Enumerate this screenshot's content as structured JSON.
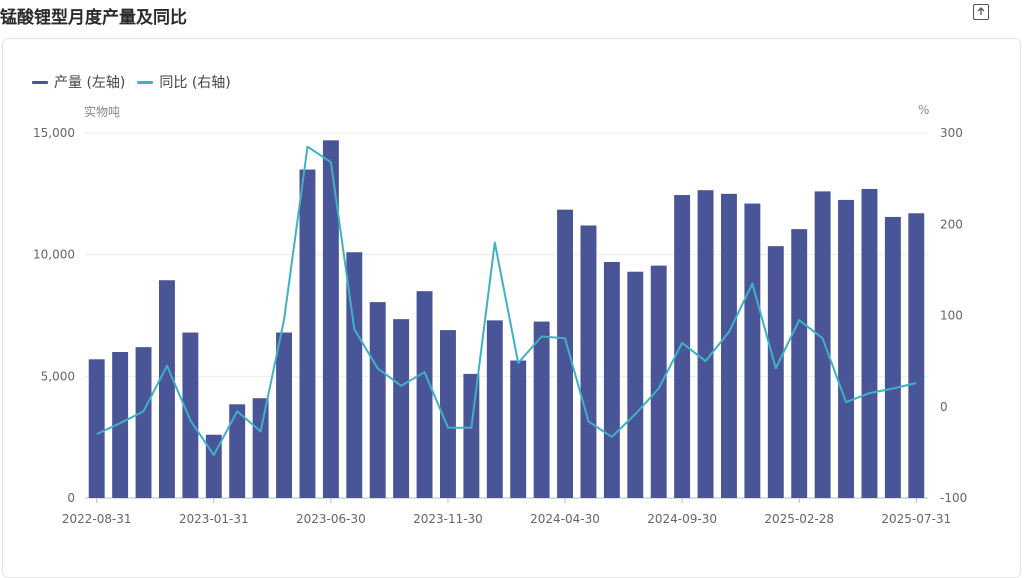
{
  "page": {
    "title": "锰酸锂型月度产量及同比",
    "export_icon": "export-icon"
  },
  "legend": [
    {
      "label": "产量 (左轴)",
      "color": "#4a5598"
    },
    {
      "label": "同比 (右轴)",
      "color": "#3fb1c5"
    }
  ],
  "axis_units": {
    "left": "实物吨",
    "right": "%"
  },
  "chart_data": {
    "type": "bar+line",
    "x": [
      "2022-08-31",
      "2022-09-30",
      "2022-10-31",
      "2022-11-30",
      "2022-12-31",
      "2023-01-31",
      "2023-02-28",
      "2023-03-31",
      "2023-04-30",
      "2023-05-31",
      "2023-06-30",
      "2023-07-31",
      "2023-08-31",
      "2023-09-30",
      "2023-10-31",
      "2023-11-30",
      "2023-12-31",
      "2024-01-31",
      "2024-02-29",
      "2024-03-31",
      "2024-04-30",
      "2024-05-31",
      "2024-06-30",
      "2024-07-31",
      "2024-08-31",
      "2024-09-30",
      "2024-10-31",
      "2024-11-30",
      "2024-12-31",
      "2025-01-31",
      "2025-02-28",
      "2025-03-31",
      "2025-04-30",
      "2025-05-31",
      "2025-06-30",
      "2025-07-31"
    ],
    "x_tick_labels": [
      "2022-08-31",
      "2023-01-31",
      "2023-06-30",
      "2023-11-30",
      "2024-04-30",
      "2024-09-30",
      "2025-02-28",
      "2025-07-31"
    ],
    "series": [
      {
        "name": "产量 (左轴)",
        "type": "bar",
        "axis": "left",
        "color": "#4a5598",
        "values": [
          5700,
          6000,
          6200,
          8950,
          6800,
          2600,
          3850,
          4100,
          6800,
          13500,
          14700,
          10100,
          8050,
          7350,
          8500,
          6900,
          5100,
          7300,
          5650,
          7250,
          11850,
          11200,
          9700,
          9300,
          9550,
          12450,
          12650,
          12500,
          12100,
          10350,
          11050,
          12600,
          12250,
          12700,
          11550,
          11700
        ]
      },
      {
        "name": "同比 (右轴)",
        "type": "line",
        "axis": "right",
        "color": "#3fb1c5",
        "values": [
          -30,
          -18,
          -5,
          45,
          -15,
          -53,
          -5,
          -27,
          95,
          285,
          268,
          85,
          42,
          23,
          38,
          -23,
          -23,
          180,
          48,
          77,
          75,
          -16,
          -33,
          -8,
          20,
          70,
          50,
          82,
          135,
          42,
          95,
          75,
          5,
          15,
          20,
          26
        ]
      }
    ],
    "ylim_left": [
      0,
      15000
    ],
    "yticks_left": [
      "0",
      "5,000",
      "10,000",
      "15,000"
    ],
    "ylim_right": [
      -100,
      300
    ],
    "yticks_right": [
      "-100",
      "0",
      "100",
      "200",
      "300"
    ],
    "grid": true,
    "legend_position": "top-left"
  }
}
